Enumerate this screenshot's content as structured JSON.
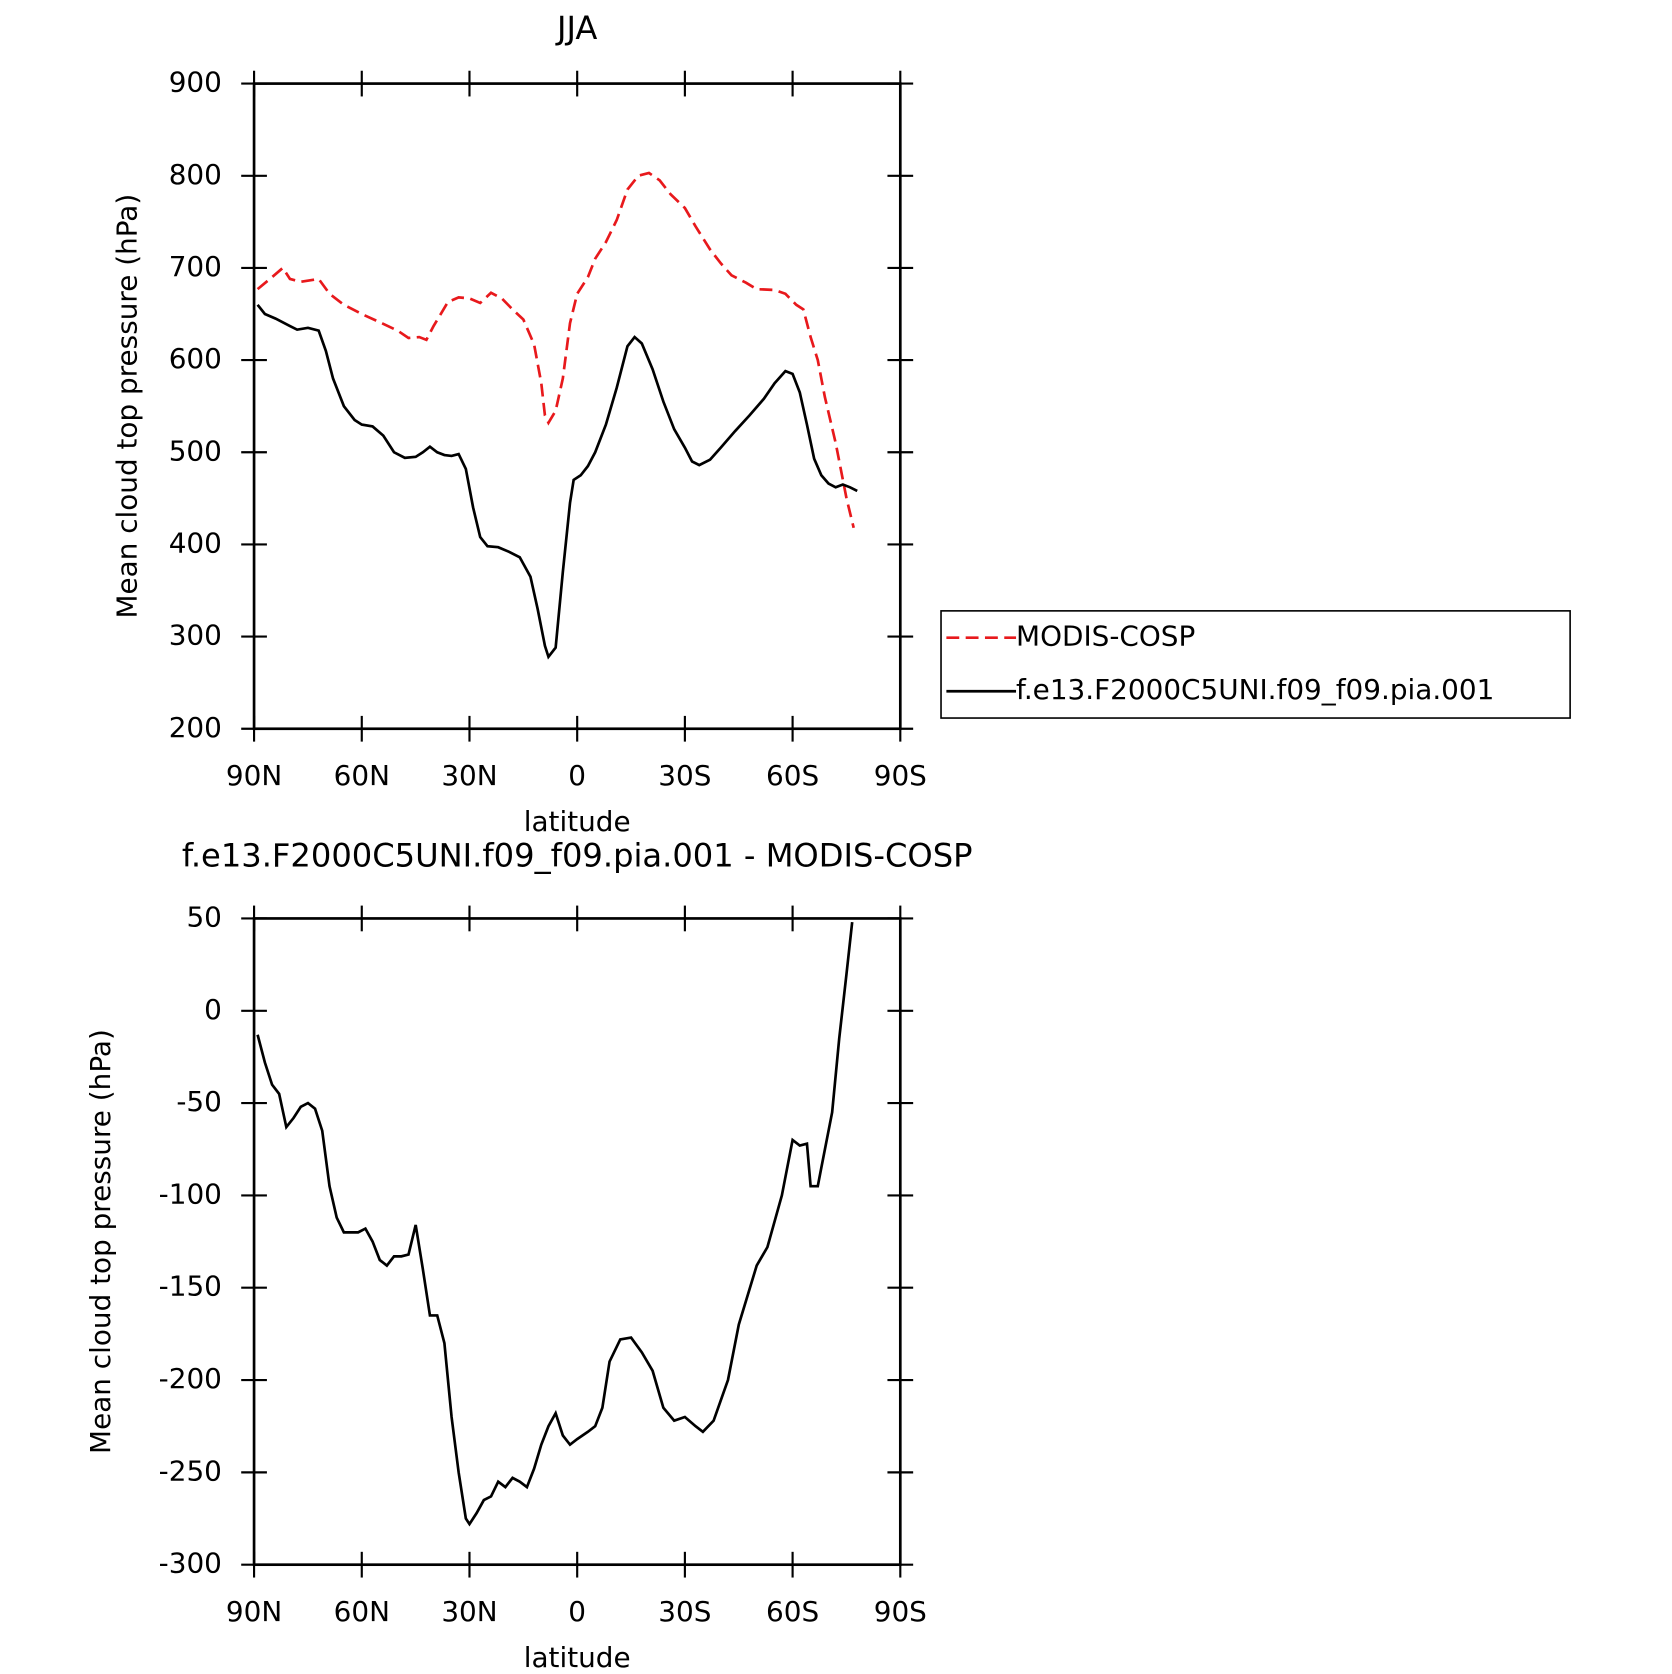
{
  "chart_data": [
    {
      "type": "line",
      "title": "JJA",
      "xlabel": "latitude",
      "ylabel": "Mean cloud top pressure (hPa)",
      "xlim": [
        90,
        -90
      ],
      "xticks": [
        {
          "value": 90,
          "label": "90N"
        },
        {
          "value": 60,
          "label": "60N"
        },
        {
          "value": 30,
          "label": "30N"
        },
        0,
        {
          "value": -30,
          "label": "30S"
        },
        {
          "value": -60,
          "label": "60S"
        },
        {
          "value": -90,
          "label": "90S"
        }
      ],
      "ylim": [
        200,
        900
      ],
      "yticks": [
        200,
        300,
        400,
        500,
        600,
        700,
        800,
        900
      ],
      "legend": "right",
      "series": [
        {
          "name": "MODIS-COSP",
          "color": "#e8191c",
          "dashed": true,
          "x": [
            89,
            85,
            82,
            80,
            77,
            72,
            69,
            65,
            60,
            55,
            50,
            47,
            44,
            42,
            40,
            36,
            33,
            30,
            27,
            24,
            21,
            18,
            15,
            12,
            10,
            9,
            8,
            6,
            4,
            2,
            0,
            -3,
            -5,
            -8,
            -11,
            -14,
            -17,
            -20,
            -23,
            -26,
            -30,
            -33,
            -37,
            -40,
            -43,
            -47,
            -50,
            -55,
            -58,
            -61,
            -63,
            -65,
            -67,
            -69,
            -72,
            -75,
            -77
          ],
          "values": [
            677,
            690,
            700,
            688,
            685,
            688,
            672,
            660,
            650,
            641,
            632,
            624,
            625,
            622,
            637,
            663,
            668,
            667,
            662,
            673,
            667,
            655,
            644,
            617,
            575,
            540,
            532,
            545,
            580,
            640,
            672,
            690,
            710,
            728,
            752,
            785,
            800,
            803,
            795,
            780,
            765,
            745,
            720,
            705,
            692,
            684,
            677,
            676,
            672,
            660,
            655,
            625,
            600,
            560,
            510,
            450,
            418
          ]
        },
        {
          "name": "f.e13.F2000C5UNI.f09_f09.pia.001",
          "color": "#000000",
          "dashed": false,
          "x": [
            89,
            87,
            84,
            80,
            78,
            75,
            72,
            70,
            68,
            65,
            62,
            60,
            57,
            54,
            51,
            48,
            45,
            43,
            41,
            39,
            37,
            35,
            33,
            31,
            29,
            27,
            25,
            22,
            19,
            16,
            13,
            11,
            9,
            8,
            6,
            4,
            2,
            1,
            -1,
            -3,
            -5,
            -8,
            -11,
            -14,
            -16,
            -18,
            -21,
            -24,
            -27,
            -30,
            -32,
            -34,
            -37,
            -40,
            -44,
            -48,
            -52,
            -55,
            -58,
            -60,
            -62,
            -64,
            -66,
            -68,
            -70,
            -72,
            -74,
            -76,
            -78
          ],
          "values": [
            660,
            650,
            645,
            637,
            633,
            635,
            632,
            610,
            580,
            550,
            535,
            530,
            528,
            518,
            500,
            494,
            495,
            500,
            506,
            500,
            497,
            496,
            498,
            482,
            440,
            408,
            398,
            397,
            392,
            386,
            365,
            330,
            290,
            278,
            288,
            370,
            445,
            470,
            475,
            485,
            500,
            530,
            570,
            615,
            625,
            618,
            590,
            555,
            525,
            505,
            490,
            486,
            492,
            505,
            523,
            540,
            558,
            575,
            588,
            585,
            565,
            530,
            493,
            475,
            466,
            462,
            465,
            462,
            458
          ]
        }
      ]
    },
    {
      "type": "line",
      "title": "f.e13.F2000C5UNI.f09_f09.pia.001 - MODIS-COSP",
      "xlabel": "latitude",
      "ylabel": "Mean cloud top pressure (hPa)",
      "xlim": [
        90,
        -90
      ],
      "xticks": [
        {
          "value": 90,
          "label": "90N"
        },
        {
          "value": 60,
          "label": "60N"
        },
        {
          "value": 30,
          "label": "30N"
        },
        0,
        {
          "value": -30,
          "label": "30S"
        },
        {
          "value": -60,
          "label": "60S"
        },
        {
          "value": -90,
          "label": "90S"
        }
      ],
      "ylim": [
        -300,
        50
      ],
      "yticks": [
        -300,
        -250,
        -200,
        -150,
        -100,
        -50,
        0,
        50
      ],
      "series": [
        {
          "color": "#000000",
          "dashed": false,
          "x": [
            89,
            87,
            85,
            83,
            81,
            79,
            77,
            75,
            73,
            71,
            69,
            67,
            65,
            63,
            61,
            59,
            57,
            55,
            53,
            51,
            49,
            47,
            45,
            43,
            41,
            39,
            37,
            35,
            33,
            31,
            30,
            28,
            26,
            24,
            22,
            20,
            18,
            16,
            14,
            12,
            10,
            8,
            6,
            4,
            2,
            0,
            -3,
            -5,
            -7,
            -9,
            -12,
            -15,
            -18,
            -21,
            -24,
            -27,
            -30,
            -33,
            -35,
            -38,
            -42,
            -45,
            -50,
            -53,
            -57,
            -60,
            -62,
            -64,
            -65,
            -67,
            -68,
            -71,
            -73,
            -75,
            -76.6
          ],
          "values": [
            -13,
            -28,
            -40,
            -45,
            -63,
            -58,
            -52,
            -50,
            -53,
            -65,
            -95,
            -112,
            -120,
            -120,
            -120,
            -118,
            -125,
            -135,
            -138,
            -133,
            -133,
            -132,
            -116,
            -140,
            -165,
            -165,
            -180,
            -220,
            -250,
            -275,
            -278,
            -272,
            -265,
            -263,
            -255,
            -258,
            -253,
            -255,
            -258,
            -248,
            -235,
            -225,
            -218,
            -230,
            -235,
            -232,
            -228,
            -225,
            -215,
            -190,
            -178,
            -177,
            -185,
            -195,
            -215,
            -222,
            -220,
            -225,
            -228,
            -222,
            -200,
            -170,
            -138,
            -128,
            -100,
            -70,
            -73,
            -72,
            -95,
            -95,
            -85,
            -55,
            -15,
            20,
            48
          ]
        }
      ]
    }
  ]
}
